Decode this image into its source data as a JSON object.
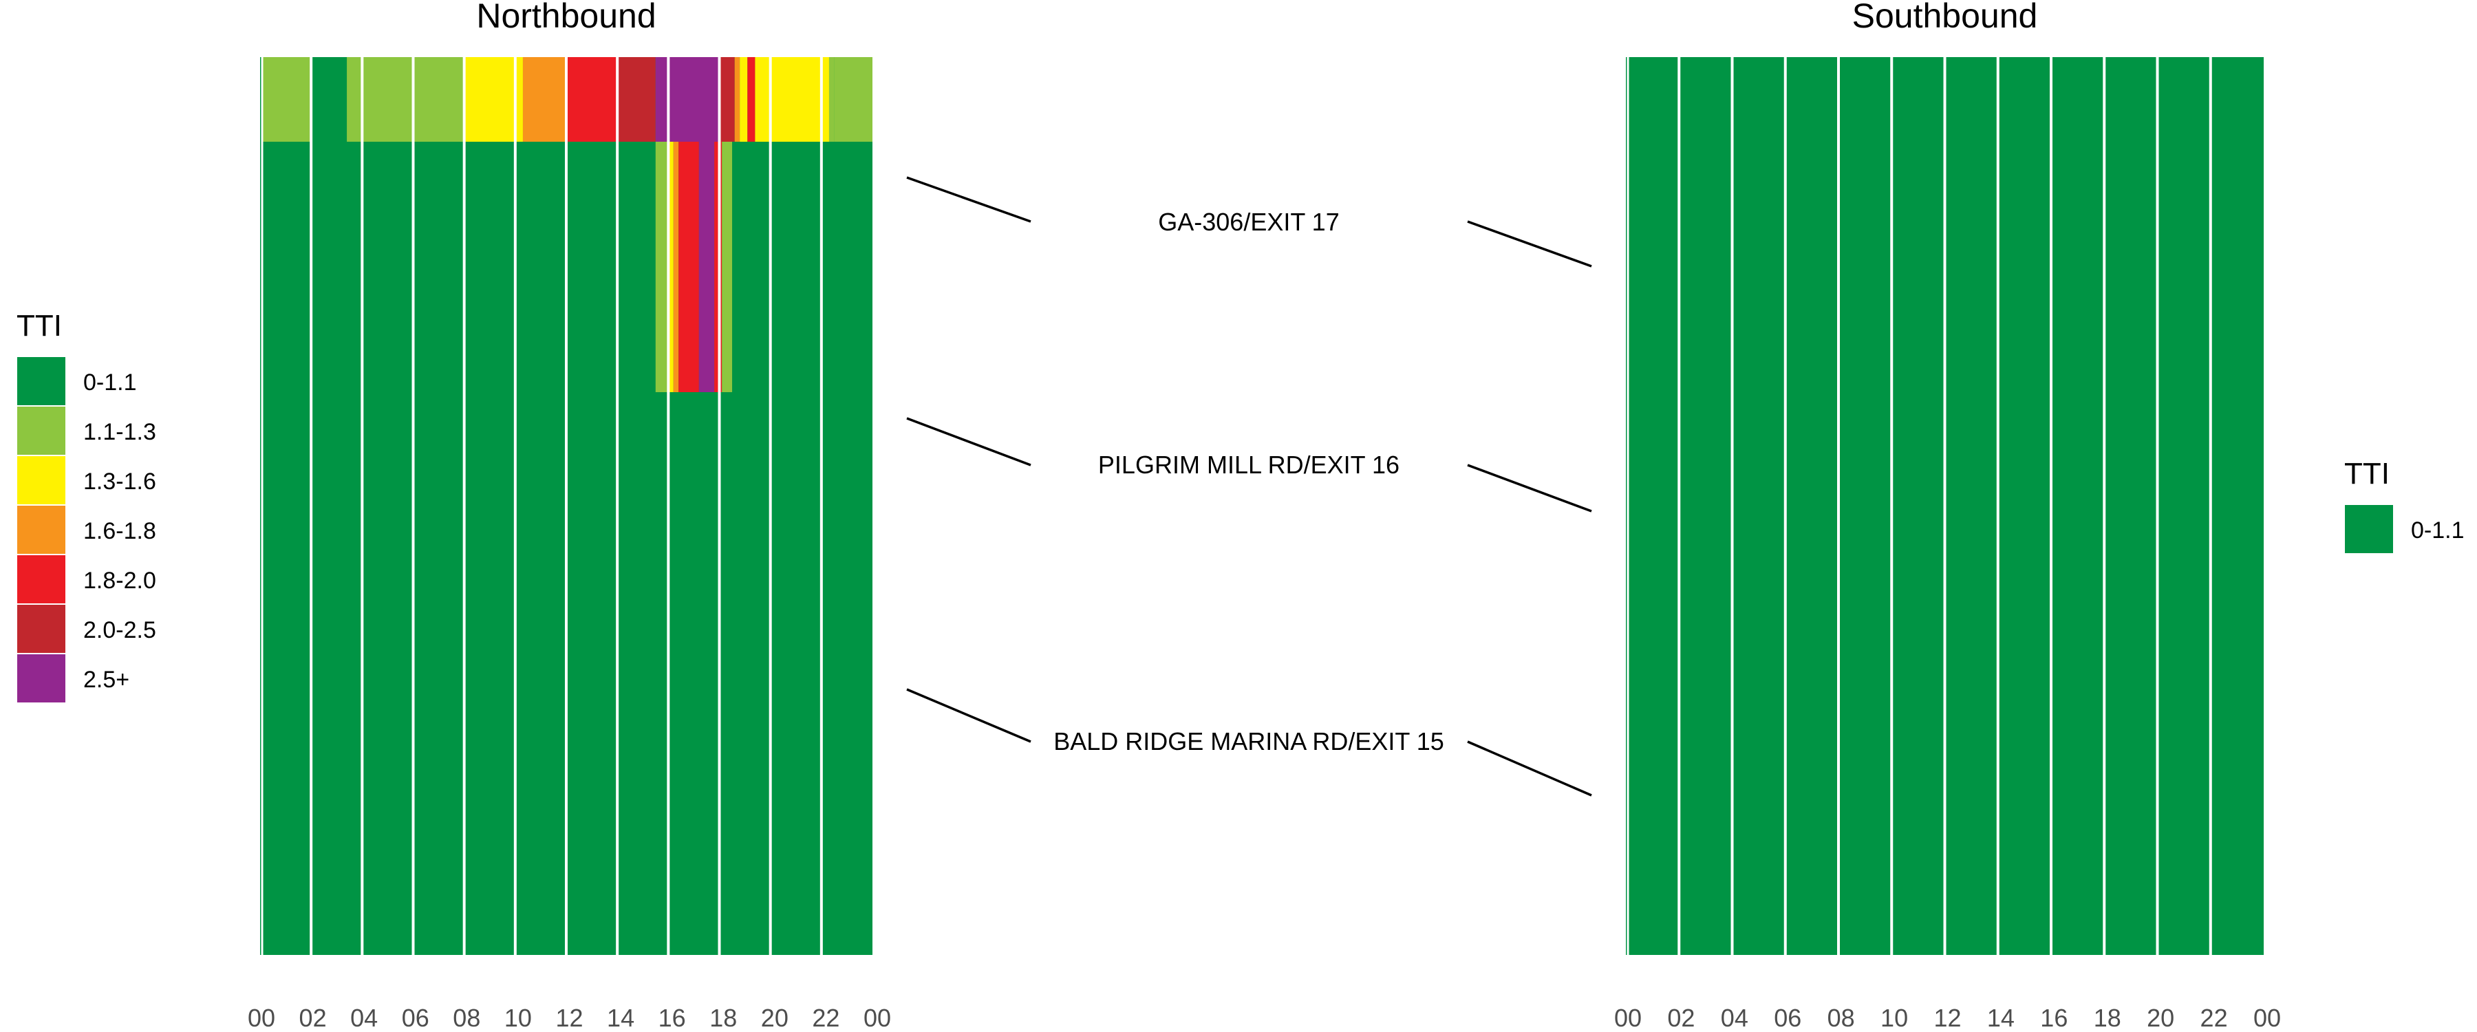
{
  "chart_data": [
    {
      "type": "heatmap",
      "title": "Northbound",
      "x_ticks": [
        "00",
        "02",
        "04",
        "06",
        "08",
        "10",
        "12",
        "14",
        "16",
        "18",
        "20",
        "22",
        "00"
      ],
      "x_range": [
        0,
        24
      ],
      "legend_title": "TTI",
      "legend_position": "left",
      "legend": [
        {
          "label": "0-1.1",
          "color": "#009444"
        },
        {
          "label": "1.1-1.3",
          "color": "#8dc63f"
        },
        {
          "label": "1.3-1.6",
          "color": "#fff200"
        },
        {
          "label": "1.6-1.8",
          "color": "#f7941d"
        },
        {
          "label": "1.8-2.0",
          "color": "#ed1c24"
        },
        {
          "label": "2.0-2.5",
          "color": "#c1272d"
        },
        {
          "label": "2.5+",
          "color": "#92278f"
        }
      ],
      "default_category": "0-1.1",
      "grid_hours": [
        2,
        4,
        6,
        8,
        10,
        12,
        14,
        16,
        18,
        20,
        22
      ],
      "cells": [
        {
          "segment": "north of GA-306/EXIT 17",
          "x0": 0.05,
          "x1": 2,
          "category": "1.1-1.3"
        },
        {
          "segment": "north of GA-306/EXIT 17",
          "x0": 2,
          "x1": 3.4,
          "category": "0-1.1"
        },
        {
          "segment": "north of GA-306/EXIT 17",
          "x0": 3.4,
          "x1": 8,
          "category": "1.1-1.3"
        },
        {
          "segment": "north of GA-306/EXIT 17",
          "x0": 8,
          "x1": 10.3,
          "category": "1.3-1.6"
        },
        {
          "segment": "north of GA-306/EXIT 17",
          "x0": 10.3,
          "x1": 12,
          "category": "1.6-1.8"
        },
        {
          "segment": "north of GA-306/EXIT 17",
          "x0": 12,
          "x1": 14,
          "category": "1.8-2.0"
        },
        {
          "segment": "north of GA-306/EXIT 17",
          "x0": 14,
          "x1": 15.5,
          "category": "2.0-2.5"
        },
        {
          "segment": "north of GA-306/EXIT 17",
          "x0": 15.5,
          "x1": 18,
          "category": "2.5+"
        },
        {
          "segment": "north of GA-306/EXIT 17",
          "x0": 18,
          "x1": 18.6,
          "category": "2.0-2.5"
        },
        {
          "segment": "north of GA-306/EXIT 17",
          "x0": 18.6,
          "x1": 18.8,
          "category": "1.6-1.8"
        },
        {
          "segment": "north of GA-306/EXIT 17",
          "x0": 18.8,
          "x1": 19.1,
          "category": "1.3-1.6"
        },
        {
          "segment": "north of GA-306/EXIT 17",
          "x0": 19.1,
          "x1": 19.4,
          "category": "1.8-2.0"
        },
        {
          "segment": "north of GA-306/EXIT 17",
          "x0": 19.4,
          "x1": 22.3,
          "category": "1.3-1.6"
        },
        {
          "segment": "north of GA-306/EXIT 17",
          "x0": 22.3,
          "x1": 22.5,
          "category": "1.1-1.3"
        },
        {
          "segment": "north of GA-306/EXIT 17",
          "x0": 22.5,
          "x1": 24,
          "category": "1.1-1.3"
        },
        {
          "segment": "GA-306/EXIT 17 to PILGRIM MILL RD/EXIT 16",
          "x0": 15.5,
          "x1": 16,
          "category": "1.1-1.3"
        },
        {
          "segment": "GA-306/EXIT 17 to PILGRIM MILL RD/EXIT 16",
          "x0": 16,
          "x1": 16.2,
          "category": "1.3-1.6"
        },
        {
          "segment": "GA-306/EXIT 17 to PILGRIM MILL RD/EXIT 16",
          "x0": 16.2,
          "x1": 16.4,
          "category": "1.6-1.8"
        },
        {
          "segment": "GA-306/EXIT 17 to PILGRIM MILL RD/EXIT 16",
          "x0": 16.4,
          "x1": 17.2,
          "category": "1.8-2.0"
        },
        {
          "segment": "GA-306/EXIT 17 to PILGRIM MILL RD/EXIT 16",
          "x0": 17.2,
          "x1": 17.8,
          "category": "2.5+"
        },
        {
          "segment": "GA-306/EXIT 17 to PILGRIM MILL RD/EXIT 16",
          "x0": 17.8,
          "x1": 18.1,
          "category": "1.8-2.0"
        },
        {
          "segment": "GA-306/EXIT 17 to PILGRIM MILL RD/EXIT 16",
          "x0": 18.1,
          "x1": 18.5,
          "category": "1.1-1.3"
        }
      ]
    },
    {
      "type": "heatmap",
      "title": "Southbound",
      "x_ticks": [
        "00",
        "02",
        "04",
        "06",
        "08",
        "10",
        "12",
        "14",
        "16",
        "18",
        "20",
        "22",
        "00"
      ],
      "x_range": [
        0,
        24
      ],
      "legend_title": "TTI",
      "legend_position": "right",
      "legend": [
        {
          "label": "0-1.1",
          "color": "#009444"
        }
      ],
      "default_category": "0-1.1",
      "grid_hours": [
        2,
        4,
        6,
        8,
        10,
        12,
        14,
        16,
        18,
        20,
        22
      ],
      "cells": []
    }
  ],
  "segments": [
    {
      "label": "GA-306/EXIT 17"
    },
    {
      "label": "PILGRIM MILL RD/EXIT 16"
    },
    {
      "label": "BALD RIDGE MARINA RD/EXIT 15"
    }
  ],
  "colors": {
    "grid_line": "#ffffff",
    "text": "#000000",
    "tick_text": "#4d4d4d",
    "connector": "#000000"
  }
}
